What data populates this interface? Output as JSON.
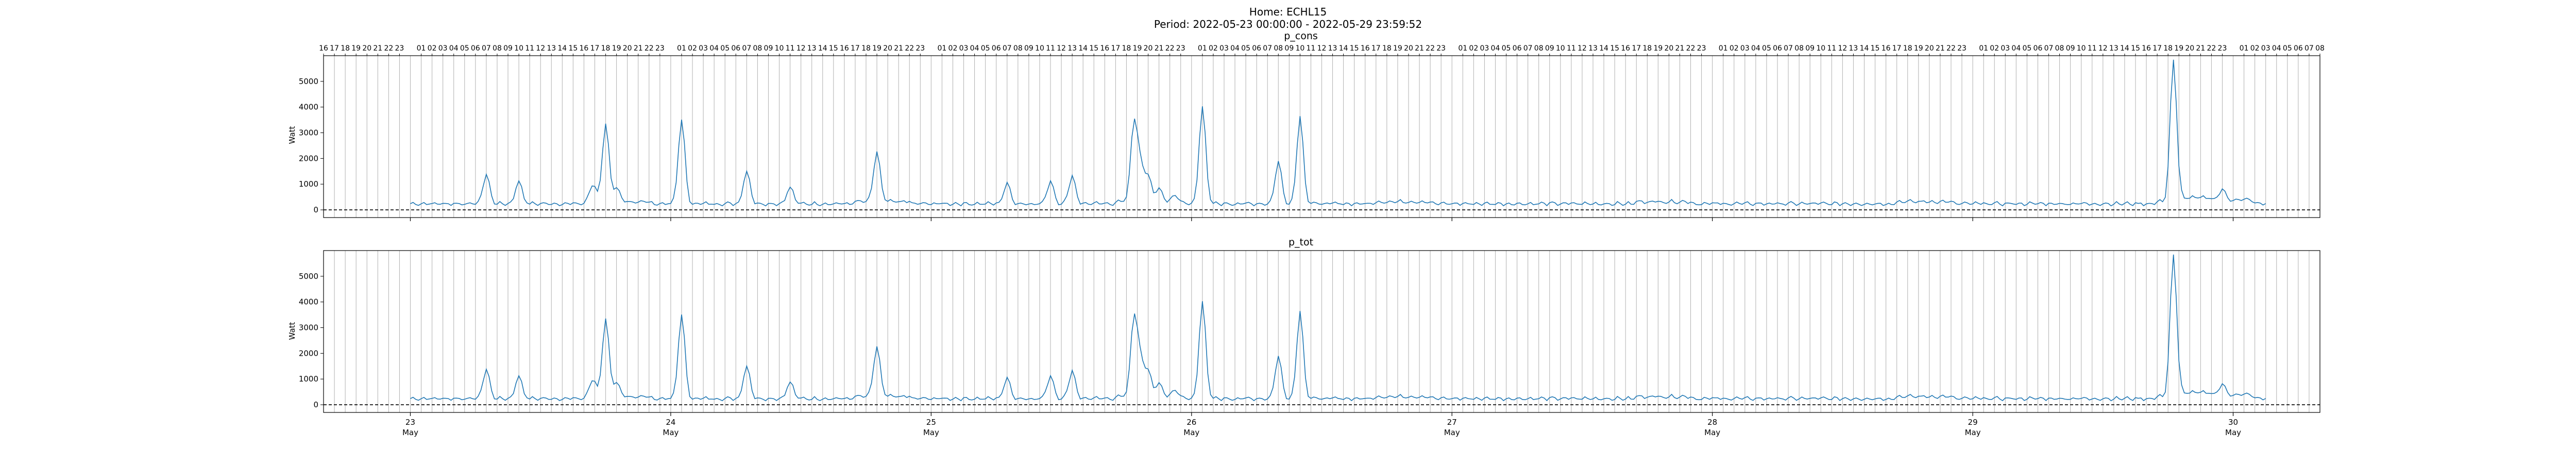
{
  "figure": {
    "title_line1": "Home: ECHL15",
    "title_line2": "Period: 2022-05-23 00:00:00 - 2022-05-29 23:59:52"
  },
  "colors": {
    "series": "#1f77b4",
    "grid": "#b0b0b0",
    "dashed": "#000000"
  },
  "chart_data": [
    {
      "type": "line",
      "title": "p_cons",
      "ylabel": "Watt",
      "xlabel": "",
      "ylim": [
        -300,
        6000
      ],
      "yticks": [
        0,
        1000,
        2000,
        3000,
        4000,
        5000
      ],
      "x_range_hours": [
        -8,
        176
      ],
      "x_major_ticks": [
        {
          "day": "23",
          "month": "May",
          "hour": 0
        },
        {
          "day": "24",
          "month": "May",
          "hour": 24
        },
        {
          "day": "25",
          "month": "May",
          "hour": 48
        },
        {
          "day": "26",
          "month": "May",
          "hour": 72
        },
        {
          "day": "27",
          "month": "May",
          "hour": 96
        },
        {
          "day": "28",
          "month": "May",
          "hour": 120
        },
        {
          "day": "29",
          "month": "May",
          "hour": 144
        },
        {
          "day": "30",
          "month": "May",
          "hour": 168
        }
      ],
      "top_hour_labels_range": [
        -8,
        176
      ],
      "grid": "vertical hourly",
      "baseline": 0,
      "data_start_hour": 0,
      "data_end_hour": 171,
      "peaks": [
        {
          "hour": 7,
          "value": 1350
        },
        {
          "hour": 10,
          "value": 1100
        },
        {
          "hour": 16.8,
          "value": 950
        },
        {
          "hour": 18,
          "value": 3250
        },
        {
          "hour": 19,
          "value": 700
        },
        {
          "hour": 25,
          "value": 3500
        },
        {
          "hour": 31,
          "value": 1500
        },
        {
          "hour": 35,
          "value": 850
        },
        {
          "hour": 43,
          "value": 2150
        },
        {
          "hour": 55,
          "value": 1000
        },
        {
          "hour": 59,
          "value": 1100
        },
        {
          "hour": 61,
          "value": 1300
        },
        {
          "hour": 66.7,
          "value": 3300
        },
        {
          "hour": 67.3,
          "value": 1500
        },
        {
          "hour": 68,
          "value": 1200
        },
        {
          "hour": 69,
          "value": 700
        },
        {
          "hour": 70.5,
          "value": 550
        },
        {
          "hour": 73,
          "value": 4000
        },
        {
          "hour": 80,
          "value": 1850
        },
        {
          "hour": 82,
          "value": 3600
        },
        {
          "hour": 162.5,
          "value": 5700
        },
        {
          "hour": 167,
          "value": 600
        }
      ],
      "base_level": 200
    },
    {
      "type": "line",
      "title": "p_tot",
      "ylabel": "Watt",
      "xlabel": "",
      "ylim": [
        -300,
        6000
      ],
      "yticks": [
        0,
        1000,
        2000,
        3000,
        4000,
        5000
      ],
      "x_range_hours": [
        -8,
        176
      ],
      "grid": "vertical hourly",
      "baseline": 0,
      "data_start_hour": 0,
      "data_end_hour": 171,
      "same_as": "p_cons",
      "base_level": 200
    }
  ]
}
